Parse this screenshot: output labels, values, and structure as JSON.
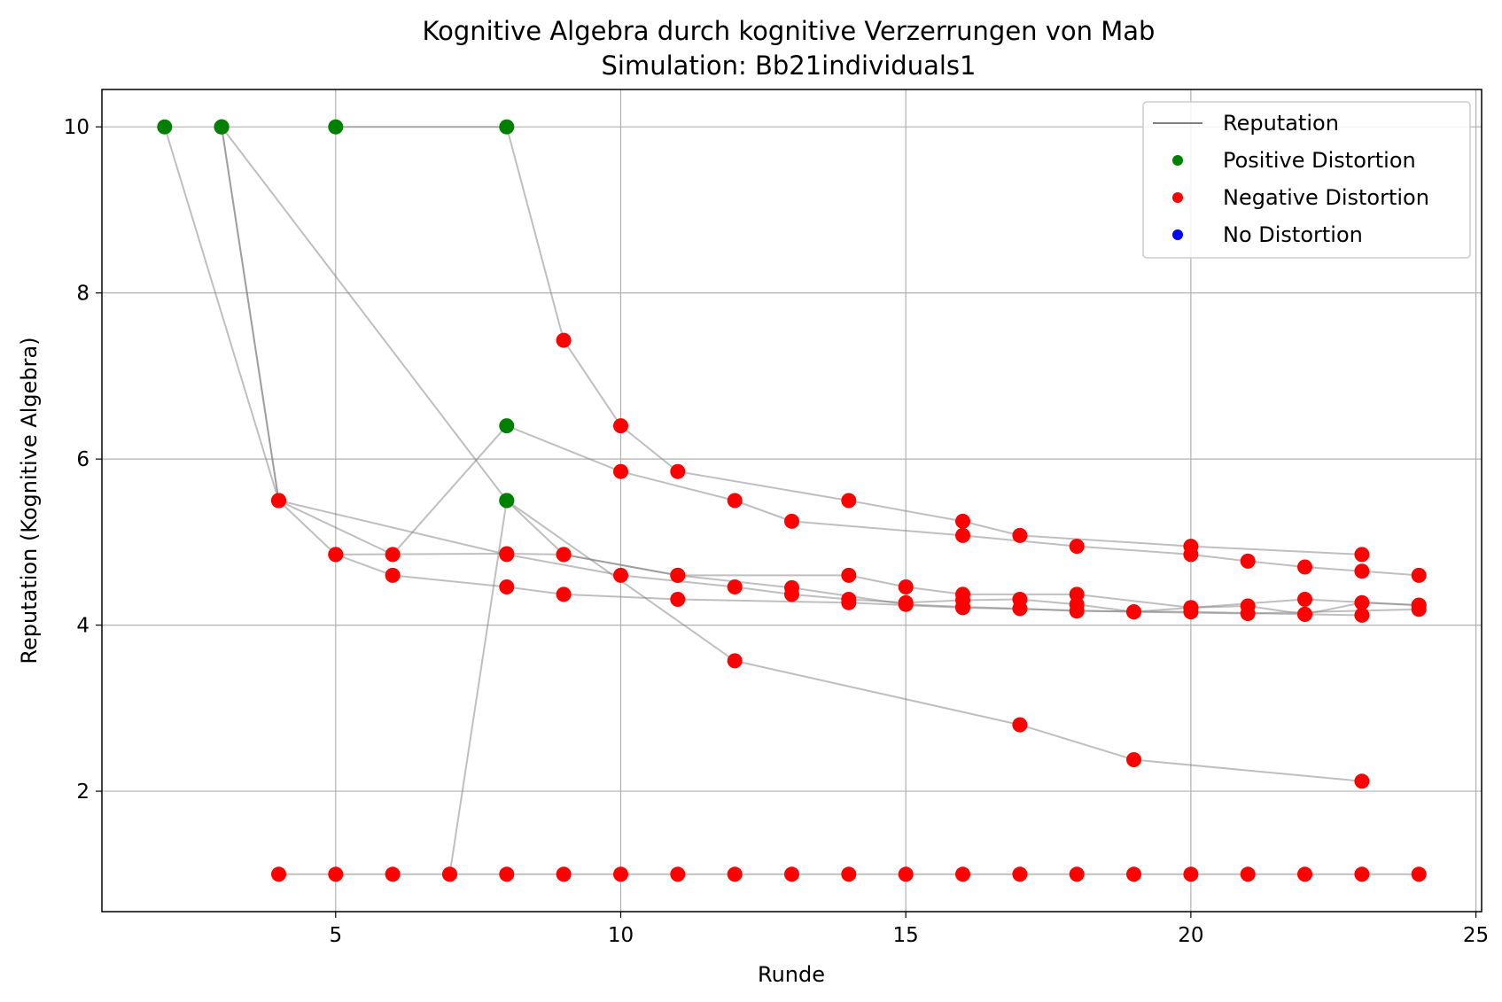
{
  "chart_data": {
    "type": "scatter",
    "title": "Kognitive Algebra durch kognitive Verzerrungen von Mab",
    "subtitle": "Simulation: Bb21individuals1",
    "xlabel": "Runde",
    "ylabel": "Reputation (Kognitive Algebra)",
    "xlim": [
      0.9,
      25.1
    ],
    "ylim": [
      0.55,
      10.45
    ],
    "xticks": [
      5,
      10,
      15,
      20,
      25
    ],
    "yticks": [
      2,
      4,
      6,
      8,
      10
    ],
    "grid": true,
    "legend_position": "top-right",
    "legend": [
      {
        "label": "Reputation",
        "kind": "line",
        "color": "#808080"
      },
      {
        "label": "Positive Distortion",
        "kind": "marker",
        "color": "#008000"
      },
      {
        "label": "Negative Distortion",
        "kind": "marker",
        "color": "#ff0000"
      },
      {
        "label": "No Distortion",
        "kind": "marker",
        "color": "#0000ff"
      }
    ],
    "colors": {
      "positive": "#008000",
      "negative": "#ff0000",
      "none": "#0000ff",
      "line": "#808080"
    },
    "series": [
      {
        "points": [
          [
            2,
            10.0,
            "p"
          ],
          [
            4,
            5.5,
            "n"
          ],
          [
            6,
            4.85,
            "n"
          ],
          [
            8,
            6.4,
            "p"
          ],
          [
            10,
            5.85,
            "n"
          ],
          [
            12,
            5.5,
            "n"
          ],
          [
            13,
            5.25,
            "n"
          ],
          [
            16,
            5.08,
            "n"
          ],
          [
            18,
            4.95,
            "n"
          ],
          [
            20,
            4.85,
            "n"
          ],
          [
            21,
            4.77,
            "n"
          ],
          [
            22,
            4.7,
            "n"
          ],
          [
            23,
            4.65,
            "n"
          ],
          [
            24,
            4.6,
            "n"
          ]
        ]
      },
      {
        "points": [
          [
            3,
            10.0,
            "p"
          ],
          [
            5,
            8.2,
            "x"
          ],
          [
            8,
            5.5,
            "p"
          ],
          [
            9,
            4.85,
            "n"
          ],
          [
            11,
            4.6,
            "n"
          ],
          [
            13,
            4.45,
            "n"
          ],
          [
            15,
            4.25,
            "n"
          ],
          [
            16,
            4.22,
            "n"
          ],
          [
            17,
            4.2,
            "n"
          ],
          [
            18,
            4.17,
            "n"
          ],
          [
            20,
            4.16,
            "n"
          ],
          [
            22,
            4.13,
            "n"
          ],
          [
            23,
            4.12,
            "n"
          ]
        ]
      },
      {
        "points": [
          [
            3,
            10.0,
            "p"
          ],
          [
            4,
            5.5,
            "n"
          ],
          [
            5,
            4.85,
            "n"
          ],
          [
            6,
            4.6,
            "n"
          ],
          [
            8,
            4.46,
            "n"
          ],
          [
            9,
            4.37,
            "n"
          ],
          [
            11,
            4.31,
            "n"
          ],
          [
            14,
            4.27,
            "n"
          ],
          [
            16,
            4.21,
            "n"
          ],
          [
            19,
            4.16,
            "n"
          ],
          [
            21,
            4.14,
            "n"
          ],
          [
            24,
            4.19,
            "n"
          ]
        ]
      },
      {
        "points": [
          [
            3,
            10.0,
            "p"
          ],
          [
            4,
            5.5,
            "n"
          ],
          [
            8,
            4.85,
            "n"
          ],
          [
            10,
            4.6,
            "n"
          ],
          [
            12,
            4.46,
            "n"
          ],
          [
            13,
            4.37,
            "n"
          ],
          [
            14,
            4.31,
            "n"
          ],
          [
            15,
            4.27,
            "n"
          ],
          [
            16,
            4.3,
            "n"
          ],
          [
            17,
            4.31,
            "n"
          ],
          [
            18,
            4.25,
            "n"
          ],
          [
            19,
            4.16,
            "n"
          ],
          [
            20,
            4.21,
            "n"
          ],
          [
            21,
            4.23,
            "n"
          ],
          [
            22,
            4.13,
            "n"
          ],
          [
            23,
            4.27,
            "n"
          ],
          [
            24,
            4.24,
            "n"
          ]
        ]
      },
      {
        "points": [
          [
            5,
            10.0,
            "p"
          ],
          [
            8,
            10.0,
            "p"
          ],
          [
            9,
            7.43,
            "n"
          ],
          [
            10,
            6.4,
            "n"
          ],
          [
            11,
            5.85,
            "n"
          ],
          [
            14,
            5.5,
            "n"
          ],
          [
            16,
            5.25,
            "n"
          ],
          [
            17,
            5.08,
            "n"
          ],
          [
            20,
            4.95,
            "n"
          ],
          [
            23,
            4.85,
            "n"
          ]
        ]
      },
      {
        "points": [
          [
            5,
            4.85,
            "n"
          ],
          [
            8,
            4.86,
            "n"
          ],
          [
            9,
            4.85,
            "n"
          ],
          [
            11,
            4.6,
            "n"
          ],
          [
            14,
            4.6,
            "n"
          ],
          [
            15,
            4.46,
            "n"
          ],
          [
            16,
            4.37,
            "n"
          ],
          [
            18,
            4.37,
            "n"
          ],
          [
            20,
            4.21,
            "n"
          ],
          [
            22,
            4.31,
            "n"
          ],
          [
            24,
            4.24,
            "n"
          ]
        ]
      },
      {
        "points": [
          [
            7,
            1.0,
            "n"
          ],
          [
            8,
            5.5,
            "p"
          ],
          [
            12,
            3.57,
            "n"
          ],
          [
            17,
            2.8,
            "n"
          ],
          [
            19,
            2.38,
            "n"
          ],
          [
            23,
            2.12,
            "n"
          ]
        ]
      },
      {
        "points": [
          [
            4,
            1.0,
            "n"
          ],
          [
            5,
            1.0,
            "n"
          ],
          [
            6,
            1.0,
            "n"
          ],
          [
            7,
            1.0,
            "n"
          ],
          [
            8,
            1.0,
            "n"
          ],
          [
            9,
            1.0,
            "n"
          ],
          [
            10,
            1.0,
            "n"
          ],
          [
            11,
            1.0,
            "n"
          ],
          [
            12,
            1.0,
            "n"
          ],
          [
            13,
            1.0,
            "n"
          ],
          [
            14,
            1.0,
            "n"
          ],
          [
            15,
            1.0,
            "n"
          ],
          [
            16,
            1.0,
            "n"
          ],
          [
            17,
            1.0,
            "n"
          ],
          [
            18,
            1.0,
            "n"
          ],
          [
            19,
            1.0,
            "n"
          ],
          [
            20,
            1.0,
            "n"
          ],
          [
            21,
            1.0,
            "n"
          ],
          [
            22,
            1.0,
            "n"
          ],
          [
            23,
            1.0,
            "n"
          ],
          [
            24,
            1.0,
            "n"
          ]
        ]
      }
    ]
  }
}
